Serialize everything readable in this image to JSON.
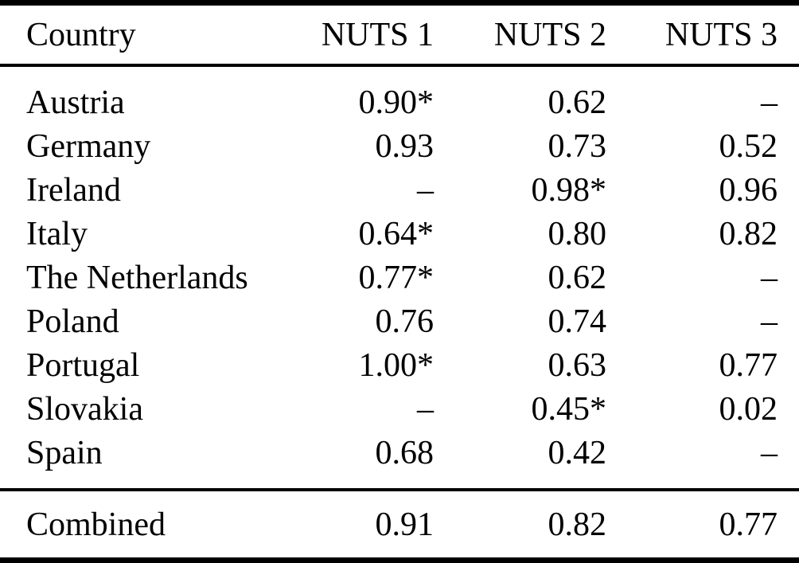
{
  "table": {
    "columns": {
      "country": "Country",
      "nuts1": "NUTS 1",
      "nuts2": "NUTS 2",
      "nuts3": "NUTS 3"
    },
    "rows": [
      {
        "country": "Austria",
        "nuts1": "0.90*",
        "nuts2": "0.62",
        "nuts3": "–"
      },
      {
        "country": "Germany",
        "nuts1": "0.93",
        "nuts2": "0.73",
        "nuts3": "0.52"
      },
      {
        "country": "Ireland",
        "nuts1": "–",
        "nuts2": "0.98*",
        "nuts3": "0.96"
      },
      {
        "country": "Italy",
        "nuts1": "0.64*",
        "nuts2": "0.80",
        "nuts3": "0.82"
      },
      {
        "country": "The Netherlands",
        "nuts1": "0.77*",
        "nuts2": "0.62",
        "nuts3": "–"
      },
      {
        "country": "Poland",
        "nuts1": "0.76",
        "nuts2": "0.74",
        "nuts3": "–"
      },
      {
        "country": "Portugal",
        "nuts1": "1.00*",
        "nuts2": "0.63",
        "nuts3": "0.77"
      },
      {
        "country": "Slovakia",
        "nuts1": "–",
        "nuts2": "0.45*",
        "nuts3": "0.02"
      },
      {
        "country": "Spain",
        "nuts1": "0.68",
        "nuts2": "0.42",
        "nuts3": "–"
      }
    ],
    "footer": {
      "country": "Combined",
      "nuts1": "0.91",
      "nuts2": "0.82",
      "nuts3": "0.77"
    }
  },
  "colors": {
    "text": "#000000",
    "background": "#ffffff",
    "rule": "#000000"
  }
}
